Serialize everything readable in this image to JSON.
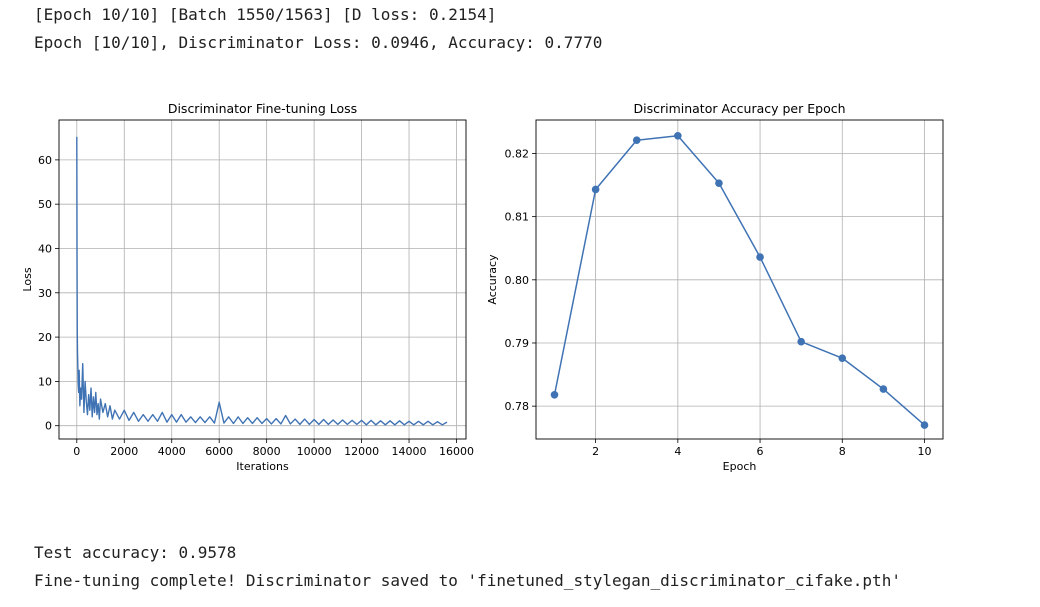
{
  "logs": {
    "line1": "[Epoch 10/10] [Batch 1550/1563] [D loss: 0.2154]",
    "line2": "Epoch [10/10], Discriminator Loss: 0.0946, Accuracy: 0.7770"
  },
  "results": {
    "line1": "Test accuracy: 0.9578",
    "line2": "Fine-tuning complete! Discriminator saved to 'finetuned_stylegan_discriminator_cifake.pth'"
  },
  "colors": {
    "series": "#4073b4",
    "grid": "#b0b0b0"
  },
  "chart_data": [
    {
      "type": "line",
      "title": "Discriminator Fine-tuning Loss",
      "xlabel": "Iterations",
      "ylabel": "Loss",
      "xlim": [
        -750,
        16400
      ],
      "ylim": [
        -3,
        69
      ],
      "xticks": [
        0,
        2000,
        4000,
        6000,
        8000,
        10000,
        12000,
        14000,
        16000
      ],
      "yticks": [
        0,
        10,
        20,
        30,
        40,
        50,
        60
      ],
      "grid": true,
      "series": [
        {
          "x": [
            0,
            10,
            20,
            30,
            45,
            60,
            80,
            100,
            130,
            160,
            200,
            250,
            300,
            350,
            400,
            450,
            500,
            550,
            600,
            650,
            700,
            750,
            800,
            850,
            900,
            950,
            1000,
            1100,
            1200,
            1300,
            1400,
            1500,
            1600,
            1800,
            2000,
            2200,
            2400,
            2600,
            2800,
            3000,
            3200,
            3400,
            3600,
            3800,
            4000,
            4200,
            4400,
            4600,
            4800,
            5000,
            5200,
            5400,
            5600,
            5800,
            6000,
            6200,
            6400,
            6600,
            6800,
            7000,
            7200,
            7400,
            7600,
            7800,
            8000,
            8200,
            8400,
            8600,
            8800,
            9000,
            9200,
            9400,
            9600,
            9800,
            10000,
            10200,
            10400,
            10600,
            10800,
            11000,
            11200,
            11400,
            11600,
            11800,
            12000,
            12200,
            12400,
            12600,
            12800,
            13000,
            13200,
            13400,
            13600,
            13800,
            14000,
            14200,
            14400,
            14600,
            14800,
            15000,
            15200,
            15400,
            15600
          ],
          "y": [
            65.2,
            37.5,
            21,
            16.5,
            13,
            9.5,
            7.5,
            12.5,
            4.5,
            8.5,
            6,
            14,
            3,
            10,
            5.5,
            2.5,
            7,
            3.5,
            8.5,
            2,
            6.5,
            3,
            7.5,
            2.5,
            5,
            1.5,
            6,
            3,
            5,
            2,
            4.5,
            1.5,
            3.5,
            1.5,
            3.5,
            1.2,
            3,
            1,
            2.5,
            1,
            2.5,
            1,
            3,
            0.8,
            2.5,
            0.8,
            2.5,
            0.8,
            2,
            0.7,
            2,
            0.7,
            2,
            0.6,
            5.3,
            0.6,
            2,
            0.5,
            2,
            0.5,
            1.8,
            0.5,
            1.8,
            0.5,
            1.6,
            0.4,
            1.6,
            0.4,
            2.3,
            0.4,
            1.5,
            0.3,
            1.5,
            0.3,
            1.4,
            0.3,
            1.4,
            0.3,
            1.3,
            0.3,
            1.3,
            0.3,
            1.2,
            0.3,
            1.2,
            0.2,
            1.2,
            0.2,
            1.1,
            0.2,
            1.1,
            0.2,
            1.1,
            0.2,
            1.0,
            0.2,
            1.0,
            0.2,
            1.0,
            0.2,
            0.9,
            0.2,
            0.8
          ]
        }
      ]
    },
    {
      "type": "line",
      "title": "Discriminator Accuracy per Epoch",
      "xlabel": "Epoch",
      "ylabel": "Accuracy",
      "xlim": [
        0.55,
        10.45
      ],
      "ylim": [
        0.7748,
        0.8253
      ],
      "xticks": [
        2,
        4,
        6,
        8,
        10
      ],
      "yticks": [
        0.78,
        0.79,
        0.8,
        0.81,
        0.82
      ],
      "grid": true,
      "markers": true,
      "series": [
        {
          "x": [
            1,
            2,
            3,
            4,
            5,
            6,
            7,
            8,
            9,
            10
          ],
          "y": [
            0.7818,
            0.8143,
            0.8221,
            0.8228,
            0.8153,
            0.8036,
            0.7902,
            0.7876,
            0.7827,
            0.777
          ]
        }
      ]
    }
  ]
}
